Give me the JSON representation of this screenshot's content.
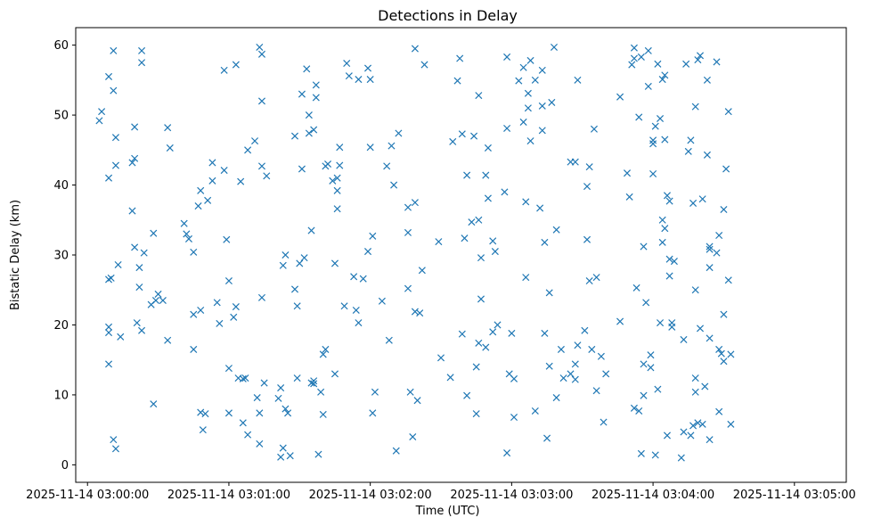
{
  "chart_data": {
    "type": "scatter",
    "title": "Detections in Delay",
    "xlabel": "Time (UTC)",
    "ylabel": "Bistatic Delay (km)",
    "x_unit": "seconds after 2025-11-14 03:00:00",
    "xlim": [
      -5,
      322
    ],
    "ylim": [
      -2.5,
      62.5
    ],
    "x_ticks": [
      {
        "value": 0,
        "label": "2025-11-14 03:00:00"
      },
      {
        "value": 60,
        "label": "2025-11-14 03:01:00"
      },
      {
        "value": 120,
        "label": "2025-11-14 03:02:00"
      },
      {
        "value": 180,
        "label": "2025-11-14 03:03:00"
      },
      {
        "value": 240,
        "label": "2025-11-14 03:04:00"
      },
      {
        "value": 300,
        "label": "2025-11-14 03:05:00"
      }
    ],
    "y_ticks": [
      0,
      10,
      20,
      30,
      40,
      50,
      60
    ],
    "grid": false,
    "legend": "none",
    "marker": "x",
    "color": "#1f77b4",
    "points": [
      [
        5,
        49.2
      ],
      [
        6,
        50.5
      ],
      [
        9,
        55.5
      ],
      [
        9,
        41
      ],
      [
        9,
        26.5
      ],
      [
        9,
        19.7
      ],
      [
        9,
        18.9
      ],
      [
        9,
        14.4
      ],
      [
        10,
        26.7
      ],
      [
        11,
        53.5
      ],
      [
        11,
        59.2
      ],
      [
        11,
        3.6
      ],
      [
        12,
        2.3
      ],
      [
        12,
        46.8
      ],
      [
        12,
        42.8
      ],
      [
        13,
        28.6
      ],
      [
        14,
        18.3
      ],
      [
        19,
        43.2
      ],
      [
        19,
        36.3
      ],
      [
        20,
        43.8
      ],
      [
        20,
        48.3
      ],
      [
        20,
        31.1
      ],
      [
        21,
        20.3
      ],
      [
        22,
        28.2
      ],
      [
        22,
        25.4
      ],
      [
        23,
        59.2
      ],
      [
        23,
        57.5
      ],
      [
        23,
        19.2
      ],
      [
        24,
        30.3
      ],
      [
        27,
        22.9
      ],
      [
        28,
        8.7
      ],
      [
        28,
        33.1
      ],
      [
        29,
        23.5
      ],
      [
        30,
        24.4
      ],
      [
        32,
        23.5
      ],
      [
        34,
        17.8
      ],
      [
        34,
        48.2
      ],
      [
        35,
        45.3
      ],
      [
        41,
        34.5
      ],
      [
        42,
        33
      ],
      [
        43,
        32.3
      ],
      [
        45,
        30.4
      ],
      [
        45,
        16.5
      ],
      [
        45,
        21.5
      ],
      [
        47,
        37
      ],
      [
        48,
        39.2
      ],
      [
        48,
        22.1
      ],
      [
        48,
        7.5
      ],
      [
        49,
        5
      ],
      [
        50,
        7.3
      ],
      [
        51,
        37.8
      ],
      [
        53,
        43.2
      ],
      [
        53,
        40.6
      ],
      [
        55,
        23.2
      ],
      [
        56,
        20.2
      ],
      [
        58,
        42.1
      ],
      [
        58,
        56.4
      ],
      [
        59,
        32.2
      ],
      [
        60,
        26.3
      ],
      [
        60,
        13.8
      ],
      [
        60,
        7.4
      ],
      [
        62,
        21.1
      ],
      [
        63,
        57.2
      ],
      [
        63,
        22.6
      ],
      [
        64,
        12.4
      ],
      [
        65,
        40.5
      ],
      [
        66,
        12.3
      ],
      [
        66,
        6
      ],
      [
        67,
        12.4
      ],
      [
        68,
        45
      ],
      [
        68,
        4.3
      ],
      [
        71,
        46.3
      ],
      [
        72,
        9.6
      ],
      [
        73,
        7.4
      ],
      [
        73,
        3
      ],
      [
        73,
        59.7
      ],
      [
        74,
        58.7
      ],
      [
        74,
        52
      ],
      [
        74,
        42.7
      ],
      [
        74,
        23.9
      ],
      [
        75,
        11.7
      ],
      [
        76,
        41.3
      ],
      [
        81,
        9.5
      ],
      [
        82,
        11
      ],
      [
        82,
        1.1
      ],
      [
        83,
        2.4
      ],
      [
        83,
        28.5
      ],
      [
        84,
        30
      ],
      [
        84,
        8
      ],
      [
        85,
        7.4
      ],
      [
        86,
        1.3
      ],
      [
        88,
        25.1
      ],
      [
        88,
        47
      ],
      [
        89,
        22.7
      ],
      [
        89,
        12.4
      ],
      [
        90,
        28.8
      ],
      [
        91,
        53
      ],
      [
        91,
        42.3
      ],
      [
        92,
        29.6
      ],
      [
        93,
        56.6
      ],
      [
        94,
        50
      ],
      [
        94,
        47.4
      ],
      [
        95,
        33.5
      ],
      [
        95,
        11.7
      ],
      [
        96,
        12
      ],
      [
        96,
        47.9
      ],
      [
        96,
        11.6
      ],
      [
        97,
        52.5
      ],
      [
        97,
        54.3
      ],
      [
        98,
        1.5
      ],
      [
        99,
        10.4
      ],
      [
        100,
        7.2
      ],
      [
        100,
        15.8
      ],
      [
        101,
        16.5
      ],
      [
        101,
        42.7
      ],
      [
        102,
        43
      ],
      [
        104,
        40.6
      ],
      [
        105,
        28.8
      ],
      [
        105,
        13
      ],
      [
        106,
        39.2
      ],
      [
        106,
        41
      ],
      [
        106,
        36.6
      ],
      [
        107,
        45.4
      ],
      [
        107,
        42.8
      ],
      [
        109,
        22.7
      ],
      [
        110,
        57.4
      ],
      [
        111,
        55.6
      ],
      [
        113,
        26.9
      ],
      [
        114,
        22.1
      ],
      [
        115,
        20.3
      ],
      [
        115,
        55.1
      ],
      [
        117,
        26.6
      ],
      [
        119,
        30.5
      ],
      [
        119,
        56.7
      ],
      [
        120,
        55.1
      ],
      [
        120,
        45.4
      ],
      [
        121,
        32.7
      ],
      [
        121,
        7.4
      ],
      [
        122,
        10.4
      ],
      [
        125,
        23.4
      ],
      [
        127,
        42.7
      ],
      [
        128,
        17.8
      ],
      [
        129,
        45.6
      ],
      [
        130,
        40
      ],
      [
        131,
        2
      ],
      [
        132,
        47.4
      ],
      [
        136,
        36.8
      ],
      [
        136,
        33.2
      ],
      [
        136,
        25.2
      ],
      [
        137,
        10.4
      ],
      [
        138,
        4
      ],
      [
        139,
        59.5
      ],
      [
        139,
        37.5
      ],
      [
        139,
        21.9
      ],
      [
        140,
        9.2
      ],
      [
        141,
        21.7
      ],
      [
        142,
        27.8
      ],
      [
        143,
        57.2
      ],
      [
        149,
        31.9
      ],
      [
        150,
        15.3
      ],
      [
        154,
        12.5
      ],
      [
        155,
        46.2
      ],
      [
        157,
        54.9
      ],
      [
        158,
        58.1
      ],
      [
        159,
        18.7
      ],
      [
        159,
        47.3
      ],
      [
        160,
        32.4
      ],
      [
        161,
        9.9
      ],
      [
        161,
        41.4
      ],
      [
        163,
        34.7
      ],
      [
        164,
        47
      ],
      [
        165,
        14
      ],
      [
        165,
        7.3
      ],
      [
        166,
        35
      ],
      [
        166,
        17.4
      ],
      [
        166,
        52.8
      ],
      [
        167,
        29.6
      ],
      [
        167,
        23.7
      ],
      [
        169,
        16.8
      ],
      [
        169,
        41.4
      ],
      [
        170,
        38.1
      ],
      [
        170,
        45.3
      ],
      [
        172,
        32
      ],
      [
        172,
        19
      ],
      [
        173,
        30.5
      ],
      [
        174,
        20
      ],
      [
        177,
        39
      ],
      [
        178,
        48.1
      ],
      [
        178,
        58.3
      ],
      [
        178,
        1.7
      ],
      [
        179,
        13
      ],
      [
        180,
        18.8
      ],
      [
        181,
        12.3
      ],
      [
        181,
        6.8
      ],
      [
        183,
        54.9
      ],
      [
        185,
        49
      ],
      [
        185,
        56.8
      ],
      [
        186,
        26.8
      ],
      [
        186,
        37.6
      ],
      [
        187,
        53.1
      ],
      [
        187,
        51
      ],
      [
        188,
        57.8
      ],
      [
        188,
        46.3
      ],
      [
        190,
        7.7
      ],
      [
        190,
        55
      ],
      [
        192,
        36.7
      ],
      [
        193,
        51.3
      ],
      [
        193,
        56.4
      ],
      [
        193,
        47.8
      ],
      [
        194,
        18.8
      ],
      [
        194,
        31.8
      ],
      [
        195,
        3.8
      ],
      [
        196,
        14.1
      ],
      [
        196,
        24.6
      ],
      [
        197,
        51.8
      ],
      [
        198,
        59.7
      ],
      [
        199,
        33.6
      ],
      [
        199,
        9.6
      ],
      [
        201,
        16.5
      ],
      [
        202,
        12.4
      ],
      [
        205,
        43.3
      ],
      [
        205,
        13
      ],
      [
        207,
        12.2
      ],
      [
        207,
        14.4
      ],
      [
        207,
        43.3
      ],
      [
        208,
        17.1
      ],
      [
        208,
        55
      ],
      [
        211,
        19.2
      ],
      [
        212,
        39.8
      ],
      [
        212,
        32.2
      ],
      [
        213,
        26.3
      ],
      [
        213,
        42.6
      ],
      [
        214,
        16.5
      ],
      [
        215,
        48
      ],
      [
        216,
        26.8
      ],
      [
        216,
        10.6
      ],
      [
        218,
        15.5
      ],
      [
        219,
        6.1
      ],
      [
        220,
        13
      ],
      [
        226,
        52.6
      ],
      [
        226,
        20.5
      ],
      [
        229,
        41.7
      ],
      [
        230,
        38.3
      ],
      [
        231,
        57.2
      ],
      [
        232,
        59.6
      ],
      [
        232,
        58.1
      ],
      [
        232,
        8.1
      ],
      [
        233,
        25.3
      ],
      [
        234,
        7.7
      ],
      [
        234,
        49.7
      ],
      [
        235,
        58.3
      ],
      [
        235,
        1.6
      ],
      [
        236,
        31.2
      ],
      [
        236,
        14.4
      ],
      [
        236,
        9.9
      ],
      [
        237,
        23.2
      ],
      [
        238,
        54.1
      ],
      [
        238,
        59.2
      ],
      [
        239,
        15.7
      ],
      [
        239,
        13.9
      ],
      [
        240,
        41.6
      ],
      [
        240,
        46.4
      ],
      [
        240,
        45.9
      ],
      [
        241,
        48.4
      ],
      [
        241,
        1.4
      ],
      [
        242,
        57.3
      ],
      [
        242,
        10.8
      ],
      [
        243,
        49.5
      ],
      [
        243,
        20.3
      ],
      [
        244,
        55.1
      ],
      [
        244,
        35
      ],
      [
        244,
        31.8
      ],
      [
        245,
        55.7
      ],
      [
        245,
        46.5
      ],
      [
        245,
        33.8
      ],
      [
        246,
        38.5
      ],
      [
        246,
        4.2
      ],
      [
        247,
        29.4
      ],
      [
        247,
        27
      ],
      [
        247,
        37.7
      ],
      [
        248,
        20.3
      ],
      [
        248,
        19.7
      ],
      [
        249,
        29.1
      ],
      [
        252,
        1
      ],
      [
        253,
        17.9
      ],
      [
        253,
        4.7
      ],
      [
        254,
        57.3
      ],
      [
        255,
        44.8
      ],
      [
        256,
        46.4
      ],
      [
        256,
        4.2
      ],
      [
        257,
        5.6
      ],
      [
        257,
        37.4
      ],
      [
        258,
        10.4
      ],
      [
        258,
        12.4
      ],
      [
        258,
        25
      ],
      [
        258,
        51.2
      ],
      [
        259,
        57.9
      ],
      [
        259,
        6
      ],
      [
        260,
        19.5
      ],
      [
        260,
        58.5
      ],
      [
        261,
        38
      ],
      [
        261,
        5.8
      ],
      [
        262,
        11.2
      ],
      [
        263,
        55
      ],
      [
        263,
        44.3
      ],
      [
        264,
        31.2
      ],
      [
        264,
        28.2
      ],
      [
        264,
        18.1
      ],
      [
        264,
        30.8
      ],
      [
        264,
        3.6
      ],
      [
        267,
        57.6
      ],
      [
        267,
        30.3
      ],
      [
        268,
        7.6
      ],
      [
        268,
        16.5
      ],
      [
        268,
        32.8
      ],
      [
        269,
        15.9
      ],
      [
        270,
        36.5
      ],
      [
        270,
        21.5
      ],
      [
        270,
        14.8
      ],
      [
        271,
        42.3
      ],
      [
        272,
        50.5
      ],
      [
        272,
        26.4
      ],
      [
        273,
        5.8
      ],
      [
        273,
        15.8
      ]
    ]
  }
}
